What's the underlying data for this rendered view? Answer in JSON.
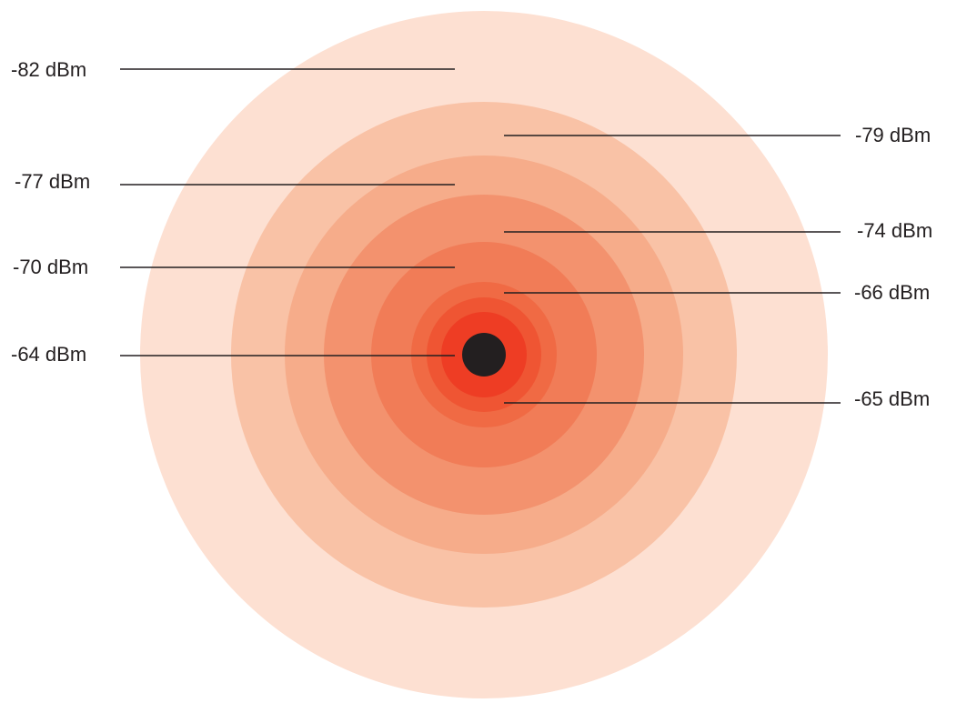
{
  "diagram": {
    "rings": [
      {
        "label": "-82 dBm",
        "color": "#fde0d2"
      },
      {
        "label": "-79 dBm",
        "color": "#f9c2a6"
      },
      {
        "label": "-77 dBm",
        "color": "#f6ac8a"
      },
      {
        "label": "-74 dBm",
        "color": "#f3926e"
      },
      {
        "label": "-70 dBm",
        "color": "#f17c57"
      },
      {
        "label": "-66 dBm",
        "color": "#f06a44"
      },
      {
        "label": "-65 dBm",
        "color": "#ef5533"
      },
      {
        "label": "-64 dBm",
        "color": "#ee3d24"
      }
    ],
    "source_color": "#231f20",
    "line_color": "#231f20"
  }
}
